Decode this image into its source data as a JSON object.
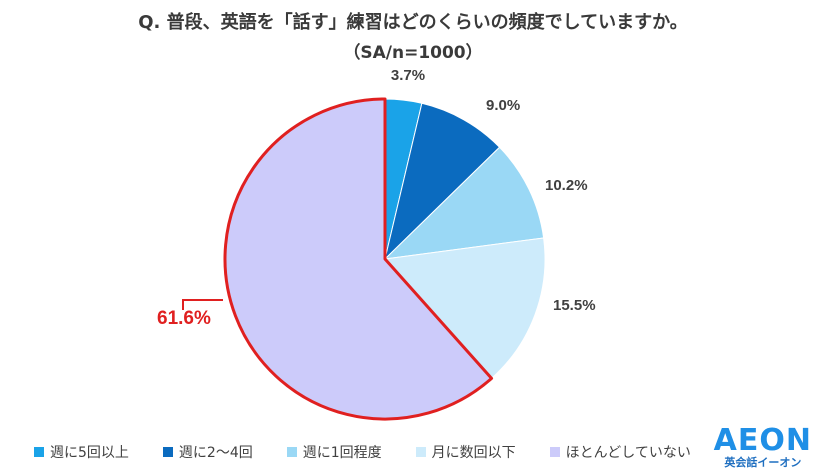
{
  "header": {
    "title": "Q. 普段、英語を「話す」練習はどのくらいの頻度でしていますか。",
    "subtitle": "（SA/n=1000）"
  },
  "chart_data": {
    "type": "pie",
    "title": "Q. 普段、英語を「話す」練習はどのくらいの頻度でしていますか。",
    "subtitle": "（SA/n=1000）",
    "unit": "%",
    "start_angle_deg": 0,
    "direction": "clockwise",
    "highlight_category": "ほとんどしていない",
    "highlight_color": "#e02020",
    "legend_position": "bottom",
    "slices": [
      {
        "label": "週に5回以上",
        "value": 3.7,
        "display": "3.7%",
        "color": "#1aa3e8"
      },
      {
        "label": "週に2〜4回",
        "value": 9.0,
        "display": "9.0%",
        "color": "#0b6bbf"
      },
      {
        "label": "週に1回程度",
        "value": 10.2,
        "display": "10.2%",
        "color": "#9ad8f5"
      },
      {
        "label": "月に数回以下",
        "value": 15.5,
        "display": "15.5%",
        "color": "#cdebfb"
      },
      {
        "label": "ほとんどしていない",
        "value": 61.6,
        "display": "61.6%",
        "color": "#cccbfa"
      }
    ]
  },
  "logo": {
    "word": "AEON",
    "sub": "英会話イーオン",
    "color": "#1f8fe6"
  }
}
